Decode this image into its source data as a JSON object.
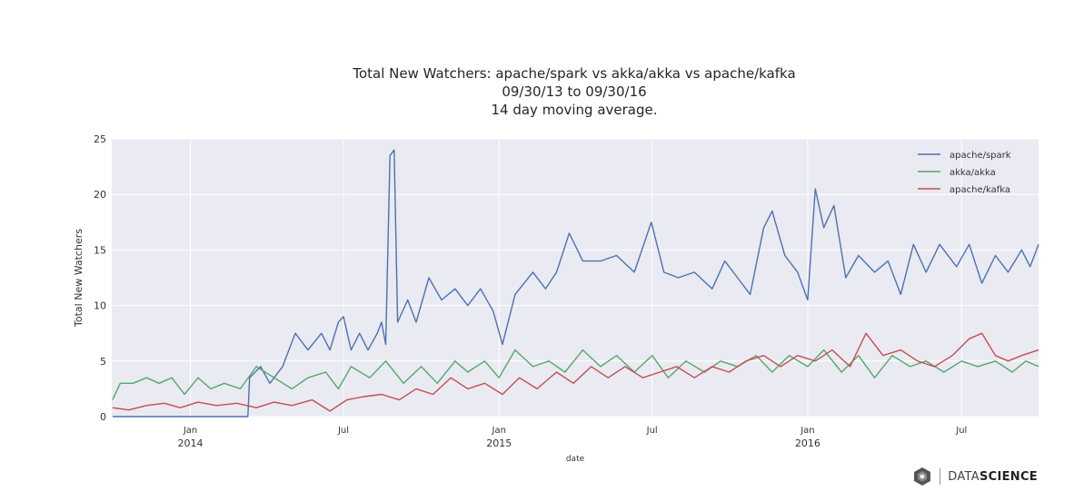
{
  "chart_data": {
    "type": "line",
    "title": [
      "Total New Watchers: apache/spark vs akka/akka vs apache/kafka",
      "09/30/13 to 09/30/16",
      "14 day moving average."
    ],
    "xlabel": "date",
    "ylabel": "Total New Watchers",
    "ylim": [
      0,
      25
    ],
    "xlim": [
      "2013-09-30",
      "2016-09-30"
    ],
    "yticks": [
      0,
      5,
      10,
      15,
      20,
      25
    ],
    "xticks": [
      {
        "date": "2014-01-01",
        "label": "Jan",
        "sub": "2014"
      },
      {
        "date": "2014-07-01",
        "label": "Jul",
        "sub": ""
      },
      {
        "date": "2015-01-01",
        "label": "Jan",
        "sub": "2015"
      },
      {
        "date": "2015-07-01",
        "label": "Jul",
        "sub": ""
      },
      {
        "date": "2016-01-01",
        "label": "Jan",
        "sub": "2016"
      },
      {
        "date": "2016-07-01",
        "label": "Jul",
        "sub": ""
      }
    ],
    "grid": true,
    "legend_position": "top-right",
    "series": [
      {
        "name": "apache/spark",
        "color": "#4c72b0",
        "points": [
          [
            "2013-10-01",
            0
          ],
          [
            "2013-11-01",
            0
          ],
          [
            "2013-12-01",
            0
          ],
          [
            "2014-01-01",
            0
          ],
          [
            "2014-02-01",
            0
          ],
          [
            "2014-03-10",
            0
          ],
          [
            "2014-03-12",
            3.5
          ],
          [
            "2014-03-25",
            4.5
          ],
          [
            "2014-04-05",
            3.0
          ],
          [
            "2014-04-20",
            4.5
          ],
          [
            "2014-05-05",
            7.5
          ],
          [
            "2014-05-20",
            6.0
          ],
          [
            "2014-06-05",
            7.5
          ],
          [
            "2014-06-15",
            6.0
          ],
          [
            "2014-06-25",
            8.5
          ],
          [
            "2014-07-01",
            9.0
          ],
          [
            "2014-07-10",
            6.0
          ],
          [
            "2014-07-20",
            7.5
          ],
          [
            "2014-07-30",
            6.0
          ],
          [
            "2014-08-10",
            7.5
          ],
          [
            "2014-08-15",
            8.5
          ],
          [
            "2014-08-20",
            6.5
          ],
          [
            "2014-08-25",
            23.5
          ],
          [
            "2014-08-30",
            24.0
          ],
          [
            "2014-09-03",
            8.5
          ],
          [
            "2014-09-15",
            10.5
          ],
          [
            "2014-09-25",
            8.5
          ],
          [
            "2014-10-10",
            12.5
          ],
          [
            "2014-10-25",
            10.5
          ],
          [
            "2014-11-10",
            11.5
          ],
          [
            "2014-11-25",
            10.0
          ],
          [
            "2014-12-10",
            11.5
          ],
          [
            "2014-12-25",
            9.5
          ],
          [
            "2015-01-05",
            6.5
          ],
          [
            "2015-01-20",
            11.0
          ],
          [
            "2015-02-10",
            13.0
          ],
          [
            "2015-02-25",
            11.5
          ],
          [
            "2015-03-10",
            13.0
          ],
          [
            "2015-03-25",
            16.5
          ],
          [
            "2015-04-10",
            14.0
          ],
          [
            "2015-05-01",
            14.0
          ],
          [
            "2015-05-20",
            14.5
          ],
          [
            "2015-06-10",
            13.0
          ],
          [
            "2015-06-30",
            17.5
          ],
          [
            "2015-07-15",
            13.0
          ],
          [
            "2015-08-01",
            12.5
          ],
          [
            "2015-08-20",
            13.0
          ],
          [
            "2015-09-10",
            11.5
          ],
          [
            "2015-09-25",
            14.0
          ],
          [
            "2015-10-10",
            12.5
          ],
          [
            "2015-10-25",
            11.0
          ],
          [
            "2015-11-10",
            17.0
          ],
          [
            "2015-11-20",
            18.5
          ],
          [
            "2015-12-05",
            14.5
          ],
          [
            "2015-12-20",
            13.0
          ],
          [
            "2016-01-01",
            10.5
          ],
          [
            "2016-01-10",
            20.5
          ],
          [
            "2016-01-20",
            17.0
          ],
          [
            "2016-02-01",
            19.0
          ],
          [
            "2016-02-15",
            12.5
          ],
          [
            "2016-03-01",
            14.5
          ],
          [
            "2016-03-20",
            13.0
          ],
          [
            "2016-04-05",
            14.0
          ],
          [
            "2016-04-20",
            11.0
          ],
          [
            "2016-05-05",
            15.5
          ],
          [
            "2016-05-20",
            13.0
          ],
          [
            "2016-06-05",
            15.5
          ],
          [
            "2016-06-25",
            13.5
          ],
          [
            "2016-07-10",
            15.5
          ],
          [
            "2016-07-25",
            12.0
          ],
          [
            "2016-08-10",
            14.5
          ],
          [
            "2016-08-25",
            13.0
          ],
          [
            "2016-09-10",
            15.0
          ],
          [
            "2016-09-20",
            13.5
          ],
          [
            "2016-09-30",
            15.5
          ]
        ]
      },
      {
        "name": "akka/akka",
        "color": "#55a868",
        "points": [
          [
            "2013-10-01",
            1.5
          ],
          [
            "2013-10-10",
            3.0
          ],
          [
            "2013-10-25",
            3.0
          ],
          [
            "2013-11-10",
            3.5
          ],
          [
            "2013-11-25",
            3.0
          ],
          [
            "2013-12-10",
            3.5
          ],
          [
            "2013-12-25",
            2.0
          ],
          [
            "2014-01-10",
            3.5
          ],
          [
            "2014-01-25",
            2.5
          ],
          [
            "2014-02-10",
            3.0
          ],
          [
            "2014-03-01",
            2.5
          ],
          [
            "2014-03-20",
            4.5
          ],
          [
            "2014-04-10",
            3.5
          ],
          [
            "2014-05-01",
            2.5
          ],
          [
            "2014-05-20",
            3.5
          ],
          [
            "2014-06-10",
            4.0
          ],
          [
            "2014-06-25",
            2.5
          ],
          [
            "2014-07-10",
            4.5
          ],
          [
            "2014-08-01",
            3.5
          ],
          [
            "2014-08-20",
            5.0
          ],
          [
            "2014-09-10",
            3.0
          ],
          [
            "2014-10-01",
            4.5
          ],
          [
            "2014-10-20",
            3.0
          ],
          [
            "2014-11-10",
            5.0
          ],
          [
            "2014-11-25",
            4.0
          ],
          [
            "2014-12-15",
            5.0
          ],
          [
            "2015-01-01",
            3.5
          ],
          [
            "2015-01-20",
            6.0
          ],
          [
            "2015-02-10",
            4.5
          ],
          [
            "2015-03-01",
            5.0
          ],
          [
            "2015-03-20",
            4.0
          ],
          [
            "2015-04-10",
            6.0
          ],
          [
            "2015-05-01",
            4.5
          ],
          [
            "2015-05-20",
            5.5
          ],
          [
            "2015-06-10",
            4.0
          ],
          [
            "2015-07-01",
            5.5
          ],
          [
            "2015-07-20",
            3.5
          ],
          [
            "2015-08-10",
            5.0
          ],
          [
            "2015-09-01",
            4.0
          ],
          [
            "2015-09-20",
            5.0
          ],
          [
            "2015-10-10",
            4.5
          ],
          [
            "2015-11-01",
            5.5
          ],
          [
            "2015-11-20",
            4.0
          ],
          [
            "2015-12-10",
            5.5
          ],
          [
            "2016-01-01",
            4.5
          ],
          [
            "2016-01-20",
            6.0
          ],
          [
            "2016-02-10",
            4.0
          ],
          [
            "2016-03-01",
            5.5
          ],
          [
            "2016-03-20",
            3.5
          ],
          [
            "2016-04-10",
            5.5
          ],
          [
            "2016-05-01",
            4.5
          ],
          [
            "2016-05-20",
            5.0
          ],
          [
            "2016-06-10",
            4.0
          ],
          [
            "2016-07-01",
            5.0
          ],
          [
            "2016-07-20",
            4.5
          ],
          [
            "2016-08-10",
            5.0
          ],
          [
            "2016-08-30",
            4.0
          ],
          [
            "2016-09-15",
            5.0
          ],
          [
            "2016-09-30",
            4.5
          ]
        ]
      },
      {
        "name": "apache/kafka",
        "color": "#c44e52",
        "points": [
          [
            "2013-10-01",
            0.8
          ],
          [
            "2013-10-20",
            0.6
          ],
          [
            "2013-11-10",
            1.0
          ],
          [
            "2013-12-01",
            1.2
          ],
          [
            "2013-12-20",
            0.8
          ],
          [
            "2014-01-10",
            1.3
          ],
          [
            "2014-02-01",
            1.0
          ],
          [
            "2014-02-25",
            1.2
          ],
          [
            "2014-03-20",
            0.8
          ],
          [
            "2014-04-10",
            1.3
          ],
          [
            "2014-05-01",
            1.0
          ],
          [
            "2014-05-25",
            1.5
          ],
          [
            "2014-06-15",
            0.5
          ],
          [
            "2014-07-05",
            1.5
          ],
          [
            "2014-07-25",
            1.8
          ],
          [
            "2014-08-15",
            2.0
          ],
          [
            "2014-09-05",
            1.5
          ],
          [
            "2014-09-25",
            2.5
          ],
          [
            "2014-10-15",
            2.0
          ],
          [
            "2014-11-05",
            3.5
          ],
          [
            "2014-11-25",
            2.5
          ],
          [
            "2014-12-15",
            3.0
          ],
          [
            "2015-01-05",
            2.0
          ],
          [
            "2015-01-25",
            3.5
          ],
          [
            "2015-02-15",
            2.5
          ],
          [
            "2015-03-10",
            4.0
          ],
          [
            "2015-03-30",
            3.0
          ],
          [
            "2015-04-20",
            4.5
          ],
          [
            "2015-05-10",
            3.5
          ],
          [
            "2015-05-30",
            4.5
          ],
          [
            "2015-06-20",
            3.5
          ],
          [
            "2015-07-10",
            4.0
          ],
          [
            "2015-07-30",
            4.5
          ],
          [
            "2015-08-20",
            3.5
          ],
          [
            "2015-09-10",
            4.5
          ],
          [
            "2015-09-30",
            4.0
          ],
          [
            "2015-10-20",
            5.0
          ],
          [
            "2015-11-10",
            5.5
          ],
          [
            "2015-11-30",
            4.5
          ],
          [
            "2015-12-20",
            5.5
          ],
          [
            "2016-01-10",
            5.0
          ],
          [
            "2016-01-30",
            6.0
          ],
          [
            "2016-02-20",
            4.5
          ],
          [
            "2016-03-10",
            7.5
          ],
          [
            "2016-03-30",
            5.5
          ],
          [
            "2016-04-20",
            6.0
          ],
          [
            "2016-05-10",
            5.0
          ],
          [
            "2016-05-30",
            4.5
          ],
          [
            "2016-06-20",
            5.5
          ],
          [
            "2016-07-10",
            7.0
          ],
          [
            "2016-07-25",
            7.5
          ],
          [
            "2016-08-10",
            5.5
          ],
          [
            "2016-08-25",
            5.0
          ],
          [
            "2016-09-10",
            5.5
          ],
          [
            "2016-09-30",
            6.0
          ]
        ]
      }
    ]
  },
  "brand": {
    "prefix": "DATA",
    "suffix": "SCIENCE"
  }
}
